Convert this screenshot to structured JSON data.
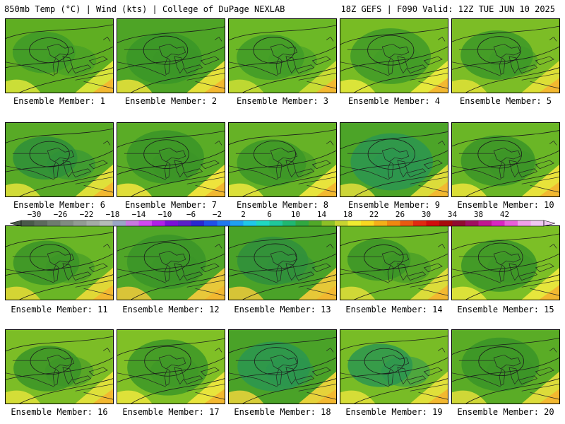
{
  "header": {
    "left_title": "850mb Temp (°C) | Wind (kts) | College of DuPage NEXLAB",
    "right_title": "18Z GEFS | F090 Valid: 12Z TUE JUN 10 2025"
  },
  "members": [
    {
      "label": "Ensemble Member: 1",
      "base": "#5fae22",
      "cool": "#3e9a28",
      "warm": "#d7e33a"
    },
    {
      "label": "Ensemble Member: 2",
      "base": "#4ea426",
      "cool": "#3a9628",
      "warm": "#e4e03a"
    },
    {
      "label": "Ensemble Member: 3",
      "base": "#6cb826",
      "cool": "#3f9a28",
      "warm": "#c8dc34"
    },
    {
      "label": "Ensemble Member: 4",
      "base": "#78bc24",
      "cool": "#3f9a28",
      "warm": "#e6e83c"
    },
    {
      "label": "Ensemble Member: 5",
      "base": "#7cbd26",
      "cool": "#3c9828",
      "warm": "#dcdf36"
    },
    {
      "label": "Ensemble Member: 6",
      "base": "#58aa26",
      "cool": "#2e8f3a",
      "warm": "#dfe03a"
    },
    {
      "label": "Ensemble Member: 7",
      "base": "#5aac26",
      "cool": "#3a9428",
      "warm": "#eee33c"
    },
    {
      "label": "Ensemble Member: 8",
      "base": "#66b226",
      "cool": "#3c9628",
      "warm": "#e8e43c"
    },
    {
      "label": "Ensemble Member: 9",
      "base": "#4ca428",
      "cool": "#2c9650",
      "warm": "#dcdc3a"
    },
    {
      "label": "Ensemble Member: 10",
      "base": "#6ab626",
      "cool": "#3a9428",
      "warm": "#e8e23a"
    },
    {
      "label": "Ensemble Member: 11",
      "base": "#6ab626",
      "cool": "#3a9428",
      "warm": "#e0d836"
    },
    {
      "label": "Ensemble Member: 12",
      "base": "#50a628",
      "cool": "#3a9428",
      "warm": "#e8c83a"
    },
    {
      "label": "Ensemble Member: 13",
      "base": "#4aa228",
      "cool": "#2f8f3c",
      "warm": "#e6c838"
    },
    {
      "label": "Ensemble Member: 14",
      "base": "#6cb626",
      "cool": "#3a9428",
      "warm": "#dcdc3a"
    },
    {
      "label": "Ensemble Member: 15",
      "base": "#7cbf26",
      "cool": "#3a9428",
      "warm": "#e6e63c"
    },
    {
      "label": "Ensemble Member: 16",
      "base": "#7cbd26",
      "cool": "#3a9428",
      "warm": "#dee03a"
    },
    {
      "label": "Ensemble Member: 17",
      "base": "#80c026",
      "cool": "#3c9628",
      "warm": "#e8e43c"
    },
    {
      "label": "Ensemble Member: 18",
      "base": "#4aa228",
      "cool": "#2a9650",
      "warm": "#e6d23a"
    },
    {
      "label": "Ensemble Member: 19",
      "base": "#78bc26",
      "cool": "#2c9650",
      "warm": "#e0e03a"
    },
    {
      "label": "Ensemble Member: 20",
      "base": "#5aac26",
      "cool": "#3a9428",
      "warm": "#dcdc3a"
    }
  ],
  "colorbar": {
    "tick_labels": [
      "−30",
      "−26",
      "−22",
      "−18",
      "−14",
      "−10",
      "−6",
      "−2",
      "2",
      "6",
      "10",
      "14",
      "18",
      "22",
      "26",
      "30",
      "34",
      "38",
      "42"
    ],
    "colors": [
      "#4a5a4a",
      "#5c6a5c",
      "#6e7c6e",
      "#808c80",
      "#929c92",
      "#a4aca4",
      "#b6bcb6",
      "#9aa6c6",
      "#c878e0",
      "#d048f0",
      "#b020e8",
      "#7a10d8",
      "#5a20c8",
      "#2a28d0",
      "#2050e8",
      "#2078f0",
      "#20a0f0",
      "#20c8e8",
      "#20d8c0",
      "#20c89a",
      "#20b870",
      "#30a840",
      "#50a828",
      "#8cc026",
      "#c8d430",
      "#f0ec30",
      "#f8d820",
      "#f4b018",
      "#f08810",
      "#e85a10",
      "#e02a10",
      "#d00c0c",
      "#a80c0c",
      "#900c30",
      "#a01060",
      "#c01890",
      "#d828c0",
      "#e860d8",
      "#f0a0e8",
      "#f0c8f0"
    ]
  }
}
